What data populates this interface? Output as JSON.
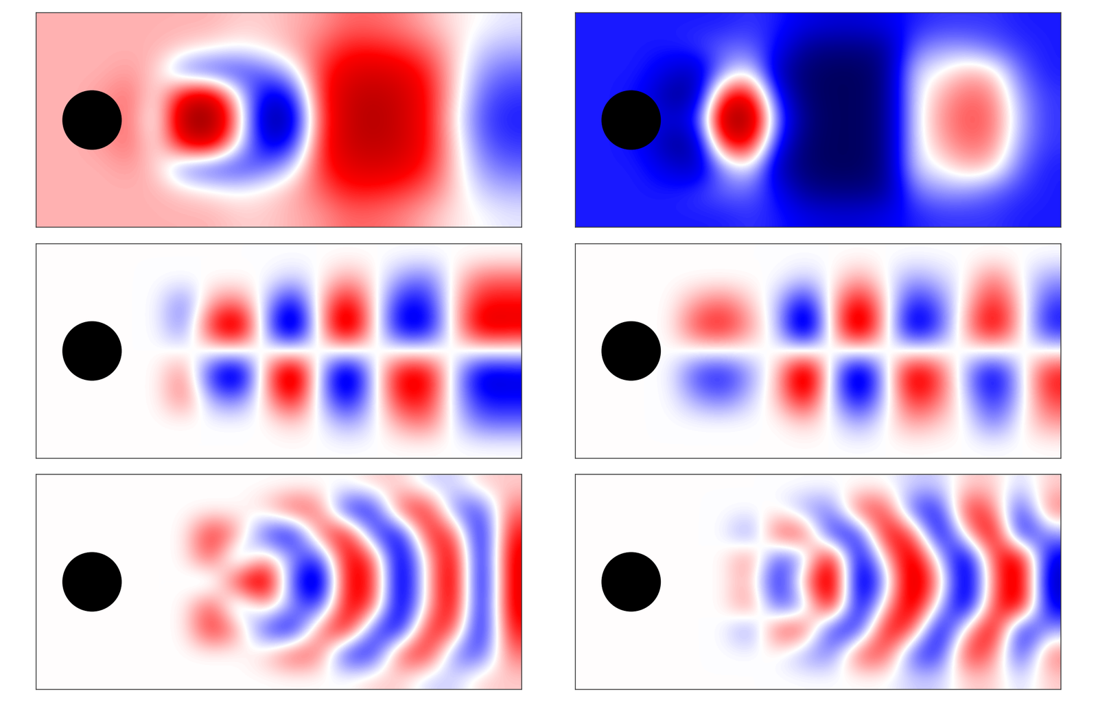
{
  "chart_data": [
    {
      "type": "heatmap",
      "tick_labels": false,
      "color_range": [
        -1,
        1
      ],
      "cells": [
        [
          0.15,
          0.15,
          0.15,
          0.15,
          0.15,
          0.15,
          0.15,
          0.1,
          0.1,
          0.15,
          0.2,
          0.3,
          0.3,
          0.25,
          0.15,
          0.05,
          0.0,
          -0.05
        ],
        [
          0.15,
          0.15,
          0.15,
          0.15,
          0.15,
          0.1,
          0.05,
          0.0,
          0.05,
          0.15,
          0.3,
          0.45,
          0.45,
          0.4,
          0.3,
          0.1,
          -0.1,
          -0.15
        ],
        [
          0.15,
          0.15,
          0.15,
          0.2,
          0.1,
          -0.3,
          -0.4,
          -0.4,
          -0.3,
          -0.1,
          0.4,
          0.6,
          0.65,
          0.6,
          0.45,
          0.1,
          -0.2,
          -0.3
        ],
        [
          0.15,
          0.15,
          0.2,
          0.3,
          0.0,
          0.6,
          0.7,
          0.0,
          -0.6,
          -0.5,
          0.4,
          0.7,
          0.75,
          0.7,
          0.5,
          0.1,
          -0.3,
          -0.4
        ],
        [
          0.15,
          0.15,
          0.2,
          0.3,
          -0.1,
          0.9,
          0.95,
          0.2,
          -0.8,
          -0.7,
          0.35,
          0.7,
          0.8,
          0.7,
          0.5,
          0.05,
          -0.35,
          -0.45
        ],
        [
          0.15,
          0.15,
          0.2,
          0.3,
          0.0,
          0.6,
          0.7,
          0.0,
          -0.6,
          -0.5,
          0.4,
          0.7,
          0.75,
          0.7,
          0.5,
          0.1,
          -0.3,
          -0.4
        ],
        [
          0.15,
          0.15,
          0.15,
          0.2,
          0.1,
          -0.3,
          -0.4,
          -0.4,
          -0.3,
          -0.1,
          0.4,
          0.6,
          0.65,
          0.6,
          0.45,
          0.1,
          -0.2,
          -0.3
        ],
        [
          0.15,
          0.15,
          0.15,
          0.15,
          0.15,
          0.1,
          0.05,
          0.0,
          0.05,
          0.15,
          0.3,
          0.45,
          0.45,
          0.4,
          0.3,
          0.1,
          -0.1,
          -0.15
        ],
        [
          0.15,
          0.15,
          0.15,
          0.15,
          0.15,
          0.15,
          0.15,
          0.1,
          0.1,
          0.15,
          0.2,
          0.3,
          0.3,
          0.25,
          0.15,
          0.05,
          0.0,
          -0.05
        ]
      ]
    },
    {
      "type": "heatmap",
      "tick_labels": false,
      "color_range": [
        -1,
        1
      ],
      "cells": [
        [
          -0.45,
          -0.45,
          -0.45,
          -0.45,
          -0.45,
          -0.45,
          -0.4,
          -0.45,
          -0.55,
          -0.6,
          -0.6,
          -0.55,
          -0.45,
          -0.4,
          -0.4,
          -0.4,
          -0.45,
          -0.45
        ],
        [
          -0.45,
          -0.45,
          -0.45,
          -0.45,
          -0.4,
          -0.3,
          -0.3,
          -0.5,
          -0.8,
          -0.85,
          -0.85,
          -0.8,
          -0.3,
          -0.2,
          -0.2,
          -0.3,
          -0.4,
          -0.45
        ],
        [
          -0.45,
          -0.45,
          -0.45,
          -0.6,
          -0.7,
          -0.2,
          0.0,
          -0.7,
          -0.9,
          -0.95,
          -0.95,
          -0.85,
          -0.1,
          0.0,
          0.15,
          0.1,
          -0.3,
          -0.45
        ],
        [
          -0.45,
          -0.45,
          -0.5,
          -0.8,
          -0.75,
          0.5,
          0.6,
          -0.5,
          -0.9,
          -0.95,
          -0.95,
          -0.85,
          -0.1,
          0.15,
          0.3,
          0.25,
          -0.2,
          -0.4
        ],
        [
          -0.45,
          -0.45,
          -0.5,
          -0.6,
          -0.5,
          0.9,
          0.9,
          -0.3,
          -0.85,
          -0.95,
          -0.95,
          -0.85,
          -0.1,
          0.2,
          0.35,
          0.3,
          -0.15,
          -0.4
        ],
        [
          -0.45,
          -0.45,
          -0.5,
          -0.8,
          -0.75,
          0.5,
          0.6,
          -0.5,
          -0.9,
          -0.95,
          -0.95,
          -0.85,
          -0.1,
          0.15,
          0.3,
          0.25,
          -0.2,
          -0.4
        ],
        [
          -0.45,
          -0.45,
          -0.45,
          -0.6,
          -0.7,
          -0.2,
          0.0,
          -0.7,
          -0.9,
          -0.95,
          -0.95,
          -0.85,
          -0.1,
          0.0,
          0.15,
          0.1,
          -0.3,
          -0.45
        ],
        [
          -0.45,
          -0.45,
          -0.45,
          -0.45,
          -0.4,
          -0.3,
          -0.3,
          -0.5,
          -0.8,
          -0.85,
          -0.85,
          -0.8,
          -0.3,
          -0.2,
          -0.2,
          -0.3,
          -0.4,
          -0.45
        ],
        [
          -0.45,
          -0.45,
          -0.45,
          -0.45,
          -0.45,
          -0.45,
          -0.4,
          -0.45,
          -0.55,
          -0.6,
          -0.6,
          -0.55,
          -0.45,
          -0.4,
          -0.4,
          -0.4,
          -0.45,
          -0.45
        ]
      ]
    },
    {
      "type": "heatmap",
      "tick_labels": false,
      "color_range": [
        -1,
        1
      ],
      "cells": [
        [
          0,
          0,
          0,
          0,
          0,
          0,
          0,
          0,
          0,
          0,
          0,
          0,
          0,
          0,
          0,
          0,
          0,
          0
        ],
        [
          0,
          0,
          0,
          0,
          0,
          0,
          0,
          0,
          0,
          -0.1,
          0,
          0.2,
          0.05,
          -0.2,
          -0.3,
          0.05,
          0.3,
          0.3
        ],
        [
          0,
          0,
          0,
          0,
          0,
          -0.3,
          0.2,
          0.3,
          -0.1,
          -0.6,
          0.1,
          0.6,
          0.1,
          -0.5,
          -0.5,
          0.1,
          0.5,
          0.5
        ],
        [
          0,
          0,
          0,
          0,
          0,
          -0.3,
          0.5,
          0.8,
          -0.2,
          -0.9,
          0.1,
          0.85,
          0.1,
          -0.6,
          -0.6,
          0.1,
          0.65,
          0.6
        ],
        [
          0,
          0,
          0,
          0,
          0,
          0,
          0,
          0,
          0,
          0,
          0,
          0,
          0,
          0,
          0,
          0,
          0,
          0
        ],
        [
          0,
          0,
          0,
          0,
          0,
          0.3,
          -0.5,
          -0.8,
          0.2,
          0.9,
          -0.1,
          -0.85,
          -0.1,
          0.6,
          0.6,
          -0.1,
          -0.65,
          -0.6
        ],
        [
          0,
          0,
          0,
          0,
          0,
          0.3,
          -0.2,
          -0.3,
          0.1,
          0.6,
          -0.1,
          -0.6,
          -0.1,
          0.5,
          0.5,
          -0.1,
          -0.5,
          -0.5
        ],
        [
          0,
          0,
          0,
          0,
          0,
          0,
          0,
          0,
          0,
          0.1,
          0,
          -0.2,
          -0.05,
          0.2,
          0.3,
          -0.05,
          -0.3,
          -0.3
        ],
        [
          0,
          0,
          0,
          0,
          0,
          0,
          0,
          0,
          0,
          0,
          0,
          0,
          0,
          0,
          0,
          0,
          0,
          0
        ]
      ]
    },
    {
      "type": "heatmap",
      "tick_labels": false,
      "color_range": [
        -1,
        1
      ],
      "cells": [
        [
          0,
          0,
          0,
          0,
          0,
          0,
          0,
          0,
          0,
          0,
          0,
          0,
          0,
          0,
          0,
          0,
          0,
          0
        ],
        [
          0,
          0,
          0,
          0,
          0,
          0,
          0,
          0,
          -0.1,
          0,
          0.2,
          0,
          -0.2,
          -0.1,
          0,
          0.3,
          0,
          -0.2
        ],
        [
          0,
          0,
          0,
          0,
          0.2,
          0.3,
          0.1,
          -0.1,
          -0.6,
          0.1,
          0.6,
          0.1,
          -0.5,
          -0.3,
          0.1,
          0.5,
          0.1,
          -0.4
        ],
        [
          0,
          0,
          0,
          0,
          0.4,
          0.5,
          0.2,
          -0.1,
          -0.9,
          0.1,
          0.85,
          0.1,
          -0.7,
          -0.4,
          0.2,
          0.65,
          0.1,
          -0.5
        ],
        [
          0,
          0,
          0,
          0,
          0,
          0,
          0,
          0,
          0,
          0,
          0,
          0,
          0,
          0,
          0,
          0,
          0,
          0
        ],
        [
          0,
          0,
          0,
          0,
          -0.4,
          -0.5,
          -0.2,
          0.1,
          0.9,
          -0.1,
          -0.85,
          -0.1,
          0.7,
          0.4,
          -0.2,
          -0.65,
          -0.1,
          0.5
        ],
        [
          0,
          0,
          0,
          0,
          -0.2,
          -0.3,
          -0.1,
          0.1,
          0.6,
          -0.1,
          -0.6,
          -0.1,
          0.5,
          0.3,
          -0.1,
          -0.5,
          -0.1,
          0.4
        ],
        [
          0,
          0,
          0,
          0,
          0,
          0,
          0,
          0,
          0.1,
          0,
          -0.2,
          0,
          0.2,
          0.1,
          0,
          -0.3,
          0,
          0.2
        ],
        [
          0,
          0,
          0,
          0,
          0,
          0,
          0,
          0,
          0,
          0,
          0,
          0,
          0,
          0,
          0,
          0,
          0,
          0
        ]
      ]
    },
    {
      "type": "heatmap",
      "tick_labels": false,
      "color_range": [
        -1,
        1
      ],
      "cells": [
        [
          0,
          0,
          0,
          0,
          0,
          0,
          0,
          0,
          0,
          0,
          0,
          0,
          0.1,
          0.1,
          -0.1,
          -0.1,
          0.1,
          0.1
        ],
        [
          0,
          0,
          0,
          0,
          0,
          0,
          0,
          0,
          0.1,
          0.4,
          0.3,
          -0.5,
          -0.5,
          0.4,
          0.5,
          -0.3,
          -0.4,
          0.3
        ],
        [
          0,
          0,
          0,
          0,
          0,
          0,
          0.5,
          0.2,
          -0.4,
          -0.6,
          0.3,
          0.6,
          -0.4,
          -0.6,
          0.5,
          0.4,
          -0.7,
          0.5
        ],
        [
          0,
          0,
          0,
          0,
          0,
          0,
          0.4,
          -0.3,
          0.2,
          -0.2,
          -0.5,
          0.6,
          0.4,
          -0.75,
          0.1,
          0.7,
          -0.75,
          0.6
        ],
        [
          0,
          0,
          0,
          0,
          0,
          0,
          -0.2,
          0.5,
          0.8,
          -0.4,
          -0.85,
          0.6,
          0.5,
          -0.8,
          0.1,
          0.75,
          -0.8,
          0.6
        ],
        [
          0,
          0,
          0,
          0,
          0,
          0,
          0.4,
          -0.3,
          0.2,
          -0.2,
          -0.5,
          0.6,
          0.4,
          -0.75,
          0.1,
          0.7,
          -0.75,
          0.6
        ],
        [
          0,
          0,
          0,
          0,
          0,
          0,
          0.5,
          0.2,
          -0.4,
          -0.6,
          0.3,
          0.6,
          -0.4,
          -0.6,
          0.5,
          0.4,
          -0.7,
          0.5
        ],
        [
          0,
          0,
          0,
          0,
          0,
          0,
          0,
          0,
          0.1,
          0.4,
          0.3,
          -0.5,
          -0.5,
          0.4,
          0.5,
          -0.3,
          -0.4,
          0.3
        ],
        [
          0,
          0,
          0,
          0,
          0,
          0,
          0,
          0,
          0,
          0,
          0,
          0,
          0.1,
          0.1,
          -0.1,
          -0.1,
          0.1,
          0.1
        ]
      ]
    },
    {
      "type": "heatmap",
      "tick_labels": false,
      "color_range": [
        -1,
        1
      ],
      "cells": [
        [
          0,
          0,
          0,
          0,
          0,
          0,
          0,
          0,
          0,
          0,
          0,
          0,
          -0.1,
          -0.1,
          0.1,
          0.1,
          -0.1,
          0.1
        ],
        [
          0,
          0,
          0,
          0,
          0,
          0,
          0,
          0,
          -0.2,
          -0.3,
          0.4,
          0.4,
          -0.4,
          -0.5,
          0.5,
          0.3,
          -0.5,
          0.3
        ],
        [
          0,
          0,
          0,
          0,
          0,
          0,
          -0.3,
          0.4,
          0.4,
          -0.5,
          -0.5,
          0.6,
          0.4,
          -0.7,
          0.1,
          0.7,
          -0.6,
          -0.2
        ],
        [
          0,
          0,
          0,
          0,
          0,
          0,
          0.3,
          -0.4,
          -0.2,
          0.7,
          -0.7,
          0.1,
          0.75,
          -0.1,
          -0.75,
          0.4,
          0.7,
          -0.6
        ],
        [
          0,
          0,
          0,
          0,
          0,
          0,
          0.2,
          -0.6,
          0.2,
          0.85,
          -0.8,
          -0.2,
          0.8,
          0.2,
          -0.8,
          0.3,
          0.75,
          -0.7
        ],
        [
          0,
          0,
          0,
          0,
          0,
          0,
          0.3,
          -0.4,
          -0.2,
          0.7,
          -0.7,
          0.1,
          0.75,
          -0.1,
          -0.75,
          0.4,
          0.7,
          -0.6
        ],
        [
          0,
          0,
          0,
          0,
          0,
          0,
          -0.3,
          0.4,
          0.4,
          -0.5,
          -0.5,
          0.6,
          0.4,
          -0.7,
          0.1,
          0.7,
          -0.6,
          -0.2
        ],
        [
          0,
          0,
          0,
          0,
          0,
          0,
          0,
          0,
          -0.2,
          -0.3,
          0.4,
          0.4,
          -0.4,
          -0.5,
          0.5,
          0.3,
          -0.5,
          0.3
        ],
        [
          0,
          0,
          0,
          0,
          0,
          0,
          0,
          0,
          0,
          0,
          0,
          0,
          -0.1,
          -0.1,
          0.1,
          0.1,
          -0.1,
          0.1
        ]
      ]
    }
  ]
}
